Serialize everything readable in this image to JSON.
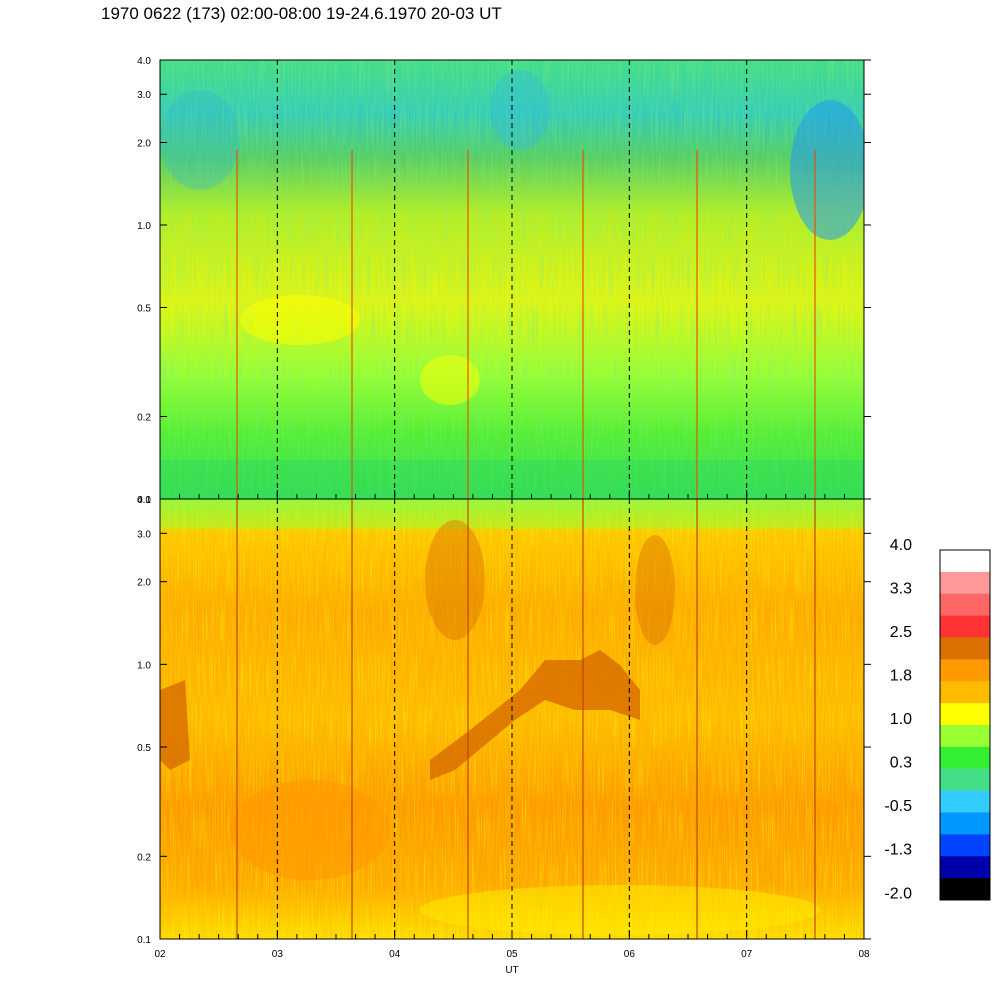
{
  "title": "1970 0622 (173) 02:00-08:00 19-24.6.1970  20-03 UT",
  "chart_data": [
    {
      "type": "heatmap",
      "panel": "top",
      "x_range": [
        2,
        8
      ],
      "y_scale": "log",
      "ylim": [
        0.1,
        4.0
      ],
      "y_ticks": [
        "0.1",
        "0.2",
        "0.5",
        "1.0",
        "2.0",
        "3.0",
        "4.0"
      ],
      "x_ticks": [
        "02",
        "03",
        "04",
        "05",
        "06",
        "07",
        "08"
      ],
      "dominant_levels": "greens and yellows, blue patches above 1.5 near 07:30-08:00",
      "vertical_dashed_lines_at": [
        3,
        4,
        5,
        6,
        7
      ]
    },
    {
      "type": "heatmap",
      "panel": "bottom",
      "x_range": [
        2,
        8
      ],
      "y_scale": "log",
      "ylim": [
        0.1,
        4.0
      ],
      "y_ticks": [
        "0.1",
        "0.2",
        "0.5",
        "1.0",
        "2.0",
        "3.0",
        "4.0"
      ],
      "x_ticks": [
        "02",
        "03",
        "04",
        "05",
        "06",
        "07",
        "08"
      ],
      "xlabel": "UT",
      "dominant_levels": "oranges and yellows, dark-orange band rising from 0.5 to 1.0 between 04:30 and 06:00",
      "vertical_dashed_lines_at": [
        3,
        4,
        5,
        6,
        7
      ]
    }
  ],
  "colorbar": {
    "labels": [
      "4.0",
      "3.3",
      "2.5",
      "1.8",
      "1.0",
      "0.3",
      "-0.5",
      "-1.3",
      "-2.0"
    ],
    "colors": [
      "#ffffff",
      "#ff9999",
      "#ff6666",
      "#ff3333",
      "#d97000",
      "#ff9900",
      "#ffbb00",
      "#ffff00",
      "#99ff33",
      "#33ee33",
      "#44dd88",
      "#33ccff",
      "#0099ff",
      "#0044ff",
      "#0000aa",
      "#000000"
    ]
  }
}
